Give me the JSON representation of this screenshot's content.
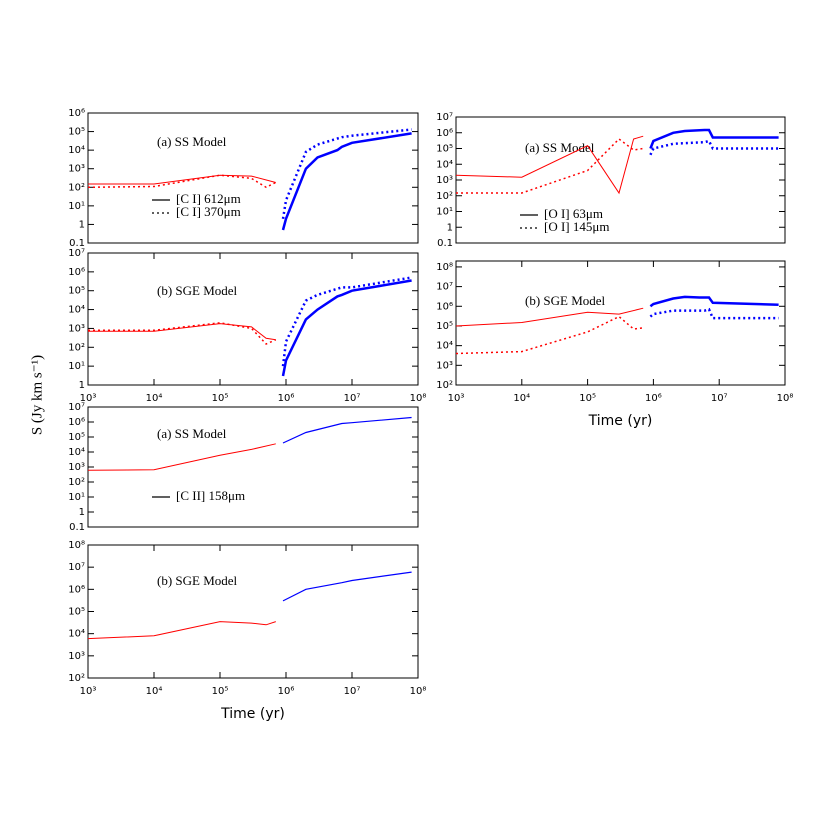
{
  "ylabel": "S (Jy km s⁻¹)",
  "chart_data": [
    {
      "type": "line",
      "title": "(a) SS Model",
      "xscale": "log",
      "yscale": "log",
      "xlim": [
        1000,
        100000000
      ],
      "ylim": [
        0.1,
        1000000
      ],
      "yticks": [
        0.1,
        1,
        {
          "value": 10,
          "label": "10¹"
        },
        {
          "value": 100,
          "label": "10²"
        },
        {
          "value": 1000,
          "label": "10³"
        },
        {
          "value": 10000,
          "label": "10⁴"
        },
        {
          "value": 100000,
          "label": "10⁵"
        },
        {
          "value": 1000000,
          "label": "10⁶"
        }
      ],
      "series": [
        {
          "name": "[C I] 612μm",
          "dash": false,
          "colors": [
            "#ff0000",
            "#0000ff"
          ],
          "widths": [
            1,
            2.5
          ],
          "x": [
            1000,
            10000,
            100000,
            300000,
            700000,
            null,
            900000,
            1000000,
            2000000,
            3000000,
            6000000,
            7000000,
            10000000,
            80000000
          ],
          "values": [
            150,
            150,
            450,
            400,
            180,
            null,
            0.5,
            2,
            1000,
            4000,
            10000,
            15000,
            25000,
            80000
          ]
        },
        {
          "name": "[C I] 370μm",
          "dash": true,
          "colors": [
            "#ff0000",
            "#0000ff"
          ],
          "widths": [
            1.5,
            2.5
          ],
          "x": [
            1000,
            10000,
            100000,
            300000,
            500000,
            700000,
            null,
            900000,
            1000000,
            2000000,
            3000000,
            7000000,
            10000000,
            80000000
          ],
          "values": [
            100,
            110,
            450,
            300,
            100,
            180,
            null,
            2,
            20,
            8000,
            20000,
            50000,
            60000,
            130000
          ]
        }
      ]
    },
    {
      "type": "line",
      "title": "(b) SGE Model",
      "xscale": "log",
      "yscale": "log",
      "xlim": [
        1000,
        100000000
      ],
      "ylim": [
        1,
        10000000
      ],
      "xticks": [
        {
          "value": 1000,
          "label": "10³"
        },
        {
          "value": 10000,
          "label": "10⁴"
        },
        {
          "value": 100000,
          "label": "10⁵"
        },
        {
          "value": 1000000,
          "label": "10⁶"
        },
        {
          "value": 10000000,
          "label": "10⁷"
        },
        {
          "value": 100000000,
          "label": "10⁸"
        }
      ],
      "yticks": [
        1,
        {
          "value": 10,
          "label": "10¹"
        },
        {
          "value": 100,
          "label": "10²"
        },
        {
          "value": 1000,
          "label": "10³"
        },
        {
          "value": 10000,
          "label": "10⁴"
        },
        {
          "value": 100000,
          "label": "10⁵"
        },
        {
          "value": 1000000,
          "label": "10⁶"
        },
        {
          "value": 10000000,
          "label": "10⁷"
        }
      ],
      "series": [
        {
          "dash": false,
          "colors": [
            "#ff0000",
            "#0000ff"
          ],
          "widths": [
            1,
            2.5
          ],
          "x": [
            1000,
            10000,
            100000,
            300000,
            500000,
            700000,
            null,
            900000,
            1000000,
            2000000,
            3000000,
            6000000,
            7000000,
            10000000,
            80000000
          ],
          "values": [
            700,
            700,
            1800,
            1200,
            300,
            250,
            null,
            3,
            20,
            3000,
            10000,
            50000,
            60000,
            100000,
            350000
          ]
        },
        {
          "dash": true,
          "colors": [
            "#ff0000",
            "#0000ff"
          ],
          "widths": [
            1.5,
            2.5
          ],
          "x": [
            1000,
            10000,
            100000,
            300000,
            500000,
            700000,
            null,
            900000,
            1000000,
            2000000,
            3000000,
            7000000,
            10000000,
            80000000
          ],
          "values": [
            800,
            800,
            2000,
            1000,
            150,
            250,
            null,
            10,
            200,
            30000,
            60000,
            150000,
            150000,
            500000
          ]
        }
      ]
    },
    {
      "type": "line",
      "title": "(a) SS Model",
      "xscale": "log",
      "yscale": "log",
      "xlim": [
        1000,
        100000000
      ],
      "ylim": [
        0.1,
        10000000
      ],
      "yticks": [
        0.1,
        1,
        {
          "value": 10,
          "label": "10¹"
        },
        {
          "value": 100,
          "label": "10²"
        },
        {
          "value": 1000,
          "label": "10³"
        },
        {
          "value": 10000,
          "label": "10⁴"
        },
        {
          "value": 100000,
          "label": "10⁵"
        },
        {
          "value": 1000000,
          "label": "10⁶"
        },
        {
          "value": 10000000,
          "label": "10⁷"
        }
      ],
      "series": [
        {
          "name": "[C II] 158μm",
          "dash": false,
          "colors": [
            "#ff0000",
            "#0000ff"
          ],
          "widths": [
            1,
            1.2
          ],
          "x": [
            1000,
            10000,
            100000,
            300000,
            700000,
            null,
            900000,
            2000000,
            7000000,
            10000000,
            80000000
          ],
          "values": [
            600,
            650,
            6000,
            15000,
            35000,
            null,
            40000,
            200000,
            800000,
            900000,
            2000000
          ]
        }
      ]
    },
    {
      "type": "line",
      "title": "(b) SGE Model",
      "xscale": "log",
      "yscale": "log",
      "xlabel": "Time (yr)",
      "xlim": [
        1000,
        100000000
      ],
      "ylim": [
        100,
        100000000
      ],
      "xticks": [
        {
          "value": 1000,
          "label": "10³"
        },
        {
          "value": 10000,
          "label": "10⁴"
        },
        {
          "value": 100000,
          "label": "10⁵"
        },
        {
          "value": 1000000,
          "label": "10⁶"
        },
        {
          "value": 10000000,
          "label": "10⁷"
        },
        {
          "value": 100000000,
          "label": "10⁸"
        }
      ],
      "yticks": [
        {
          "value": 100,
          "label": "10²"
        },
        {
          "value": 1000,
          "label": "10³"
        },
        {
          "value": 10000,
          "label": "10⁴"
        },
        {
          "value": 100000,
          "label": "10⁵"
        },
        {
          "value": 1000000,
          "label": "10⁶"
        },
        {
          "value": 10000000,
          "label": "10⁷"
        },
        {
          "value": 100000000,
          "label": "10⁸"
        }
      ],
      "series": [
        {
          "dash": false,
          "colors": [
            "#ff0000",
            "#0000ff"
          ],
          "widths": [
            1,
            1.2
          ],
          "x": [
            1000,
            10000,
            100000,
            300000,
            500000,
            700000,
            null,
            900000,
            2000000,
            7000000,
            10000000,
            80000000
          ],
          "values": [
            6000,
            8000,
            35000,
            30000,
            25000,
            35000,
            null,
            300000,
            1000000,
            2000000,
            2500000,
            6000000
          ]
        }
      ]
    },
    {
      "type": "line",
      "title": "(a) SS Model",
      "xscale": "log",
      "yscale": "log",
      "xlim": [
        1000,
        100000000
      ],
      "ylim": [
        0.1,
        10000000
      ],
      "yticks": [
        0.1,
        1,
        {
          "value": 10,
          "label": "10¹"
        },
        {
          "value": 100,
          "label": "10²"
        },
        {
          "value": 1000,
          "label": "10³"
        },
        {
          "value": 10000,
          "label": "10⁴"
        },
        {
          "value": 100000,
          "label": "10⁵"
        },
        {
          "value": 1000000,
          "label": "10⁶"
        },
        {
          "value": 10000000,
          "label": "10⁷"
        }
      ],
      "series": [
        {
          "name": "[O I] 63μm",
          "dash": false,
          "colors": [
            "#ff0000",
            "#0000ff"
          ],
          "widths": [
            1,
            2.5
          ],
          "x": [
            1000,
            10000,
            100000,
            300000,
            500000,
            700000,
            null,
            900000,
            1000000,
            2000000,
            3000000,
            6000000,
            7000000,
            8000000,
            80000000
          ],
          "values": [
            2000,
            1500,
            150000,
            150,
            400000,
            600000,
            null,
            100000,
            300000,
            1000000,
            1300000,
            1500000,
            1500000,
            500000,
            500000
          ]
        },
        {
          "name": "[O I] 145μm",
          "dash": true,
          "colors": [
            "#ff0000",
            "#0000ff"
          ],
          "widths": [
            1.5,
            2.5
          ],
          "x": [
            1000,
            10000,
            100000,
            300000,
            500000,
            700000,
            null,
            900000,
            1000000,
            2000000,
            6000000,
            7000000,
            8000000,
            80000000
          ],
          "values": [
            150,
            150,
            4000,
            400000,
            80000,
            100000,
            null,
            40000,
            100000,
            200000,
            250000,
            300000,
            100000,
            100000
          ]
        }
      ]
    },
    {
      "type": "line",
      "title": "(b) SGE Model",
      "xscale": "log",
      "yscale": "log",
      "xlabel": "Time (yr)",
      "xlim": [
        1000,
        100000000
      ],
      "ylim": [
        100,
        200000000
      ],
      "xticks": [
        {
          "value": 1000,
          "label": "10³"
        },
        {
          "value": 10000,
          "label": "10⁴"
        },
        {
          "value": 100000,
          "label": "10⁵"
        },
        {
          "value": 1000000,
          "label": "10⁶"
        },
        {
          "value": 10000000,
          "label": "10⁷"
        },
        {
          "value": 100000000,
          "label": "10⁸"
        }
      ],
      "yticks": [
        {
          "value": 100,
          "label": "10²"
        },
        {
          "value": 1000,
          "label": "10³"
        },
        {
          "value": 10000,
          "label": "10⁴"
        },
        {
          "value": 100000,
          "label": "10⁵"
        },
        {
          "value": 1000000,
          "label": "10⁶"
        },
        {
          "value": 10000000,
          "label": "10⁷"
        },
        {
          "value": 100000000,
          "label": "10⁸"
        }
      ],
      "series": [
        {
          "dash": false,
          "colors": [
            "#ff0000",
            "#0000ff"
          ],
          "widths": [
            1,
            2.5
          ],
          "x": [
            1000,
            10000,
            100000,
            300000,
            700000,
            null,
            900000,
            1000000,
            2000000,
            3000000,
            5000000,
            7000000,
            8000000,
            80000000
          ],
          "values": [
            100000,
            150000,
            500000,
            400000,
            800000,
            null,
            1000000,
            1300000,
            2500000,
            3000000,
            2800000,
            2800000,
            1500000,
            1200000
          ]
        },
        {
          "dash": true,
          "colors": [
            "#ff0000",
            "#0000ff"
          ],
          "widths": [
            1.5,
            2.5
          ],
          "x": [
            1000,
            10000,
            100000,
            300000,
            500000,
            700000,
            null,
            900000,
            1000000,
            2000000,
            6000000,
            7000000,
            8000000,
            80000000
          ],
          "values": [
            4000,
            5000,
            50000,
            300000,
            70000,
            80000,
            null,
            300000,
            400000,
            600000,
            600000,
            700000,
            250000,
            250000
          ]
        }
      ]
    }
  ]
}
